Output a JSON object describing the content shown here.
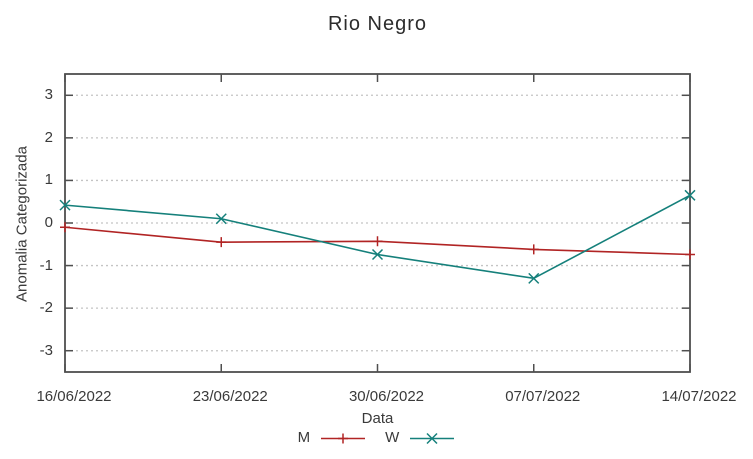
{
  "title": "Rio Negro",
  "colors": {
    "background": "#ffffff",
    "frame": "#4f4f4f",
    "grid": "#c4c4c4",
    "text": "#3a3a3a",
    "series_m_red": "#b12424",
    "series_w_teal": "#15807b"
  },
  "chart_data": {
    "type": "line",
    "title": "Rio Negro",
    "xlabel": "Data",
    "ylabel": "Anomalia Categorizada",
    "categories": [
      "16/06/2022",
      "23/06/2022",
      "30/06/2022",
      "07/07/2022",
      "14/07/2022"
    ],
    "y_ticks": [
      3,
      2,
      1,
      0,
      -1,
      -2,
      -3
    ],
    "ylim": [
      -3.5,
      3.5
    ],
    "grid": "horizontal dotted",
    "legend_position": "bottom-center",
    "series": [
      {
        "name": "M",
        "color": "#b12424",
        "marker": "plus",
        "values": [
          -0.1,
          -0.45,
          -0.43,
          -0.62,
          -0.74
        ]
      },
      {
        "name": "W",
        "color": "#15807b",
        "marker": "cross",
        "values": [
          0.42,
          0.1,
          -0.74,
          -1.3,
          0.65
        ]
      }
    ]
  }
}
